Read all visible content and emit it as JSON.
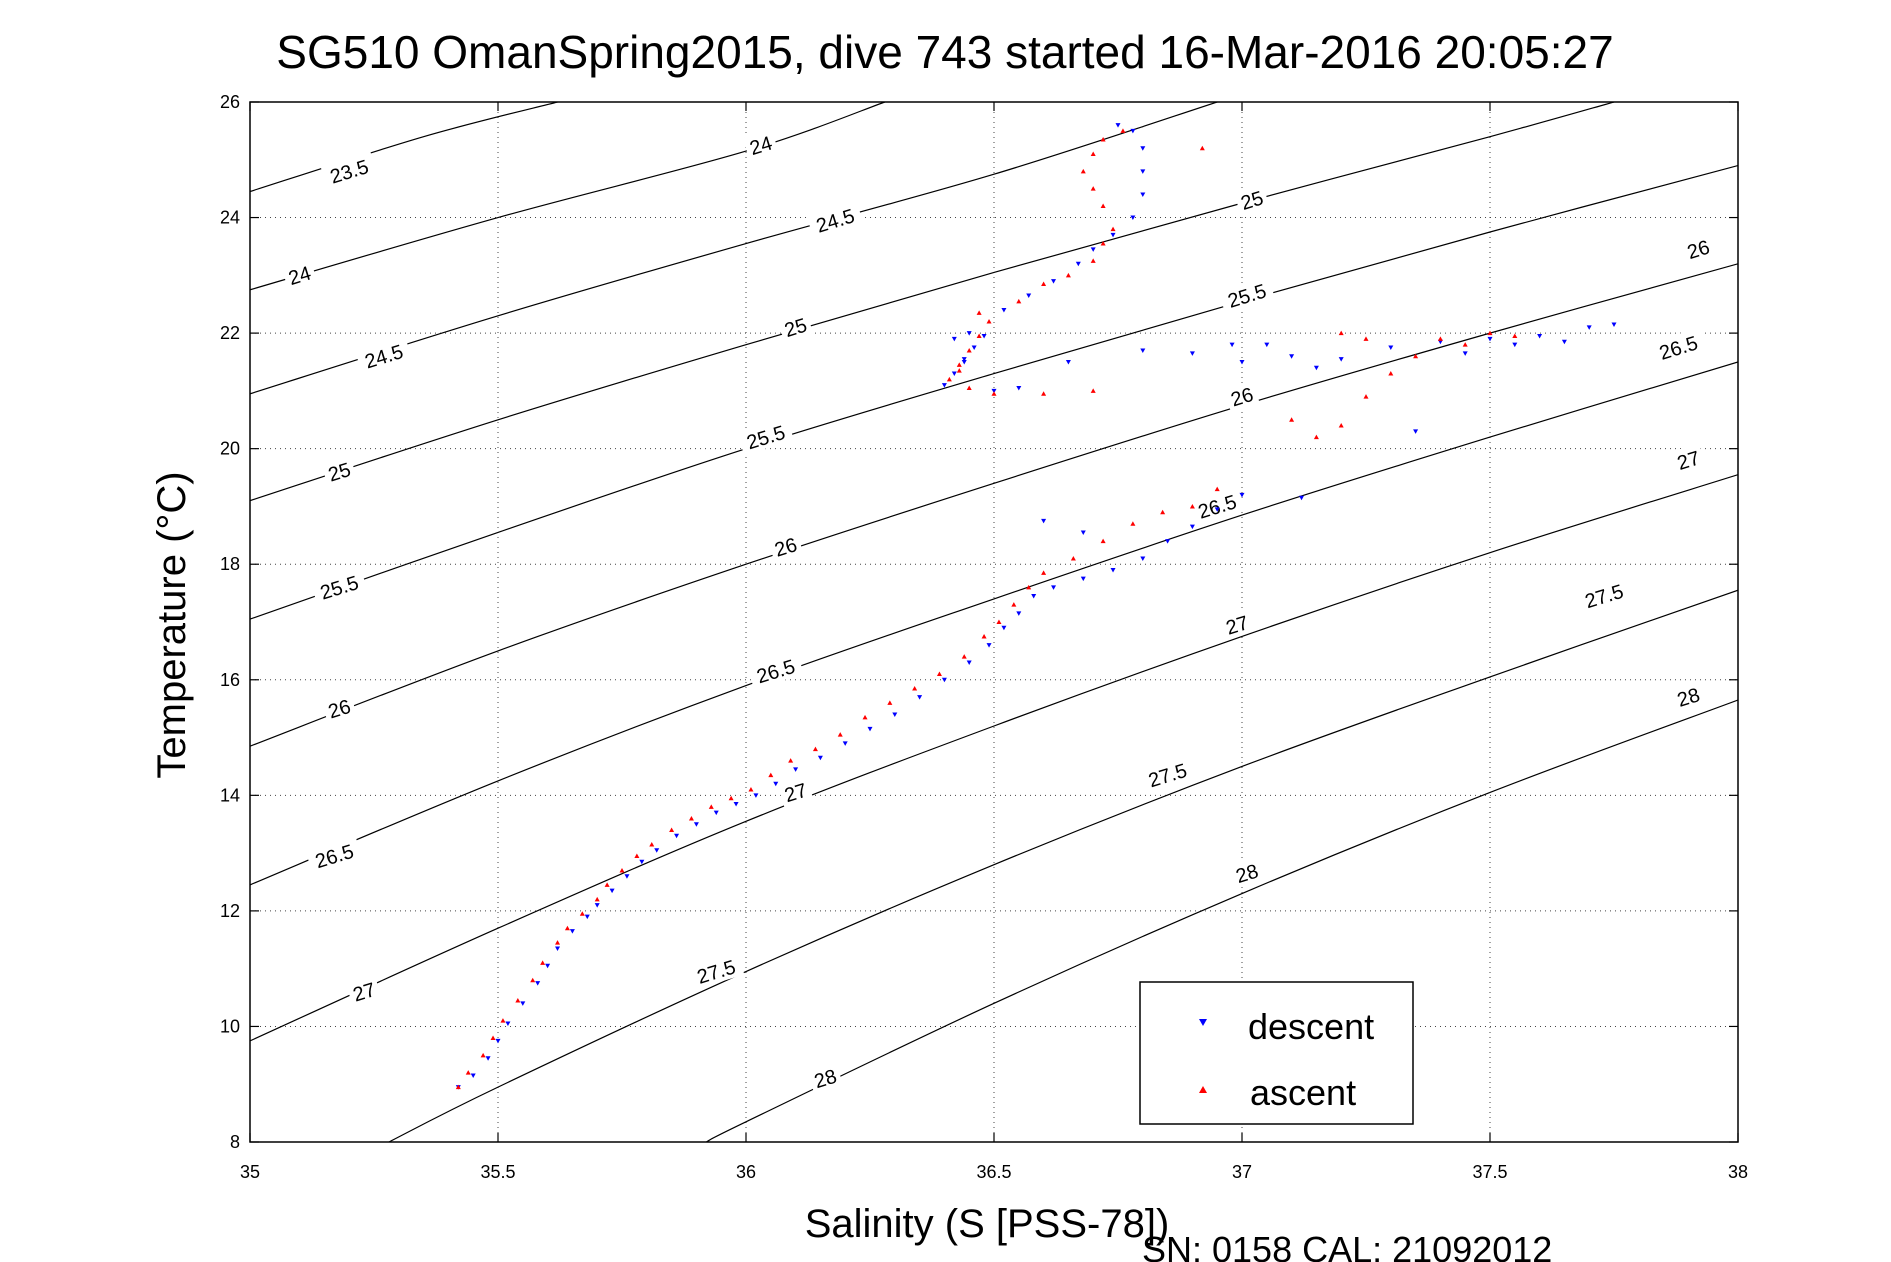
{
  "chart_data": {
    "type": "scatter",
    "title": "SG510 OmanSpring2015, dive 743 started 16-Mar-2016 20:05:27",
    "xlabel": "Salinity (S [PSS-78])",
    "ylabel": "Temperature (°C)",
    "xlim": [
      35,
      38
    ],
    "ylim": [
      8,
      26
    ],
    "xticks": [
      35,
      35.5,
      36,
      36.5,
      37,
      37.5,
      38
    ],
    "xtick_labels": [
      "35",
      "35.5",
      "36",
      "36.5",
      "37",
      "37.5",
      "38"
    ],
    "yticks": [
      8,
      10,
      12,
      14,
      16,
      18,
      20,
      22,
      24,
      26
    ],
    "ytick_labels": [
      "8",
      "10",
      "12",
      "14",
      "16",
      "18",
      "20",
      "22",
      "24",
      "26"
    ],
    "grid": true,
    "legend_position": "bottom-right",
    "contours": {
      "levels": [
        23.5,
        24,
        24.5,
        25,
        25.5,
        26,
        26.5,
        27,
        27.5,
        28
      ],
      "labels": [
        "23.5",
        "24",
        "24.5",
        "25",
        "25.5",
        "26",
        "26.5",
        "27",
        "27.5",
        "28"
      ],
      "lines": [
        {
          "level": 23.5,
          "points": [
            [
              35.0,
              24.45
            ],
            [
              35.35,
              25.4
            ],
            [
              35.62,
              26.0
            ]
          ]
        },
        {
          "level": 24,
          "points": [
            [
              35.0,
              22.75
            ],
            [
              35.5,
              24.0
            ],
            [
              36.0,
              25.15
            ],
            [
              36.28,
              26.0
            ]
          ]
        },
        {
          "level": 24.5,
          "points": [
            [
              35.0,
              20.95
            ],
            [
              35.5,
              22.3
            ],
            [
              36.0,
              23.55
            ],
            [
              36.5,
              24.75
            ],
            [
              36.95,
              26.0
            ]
          ]
        },
        {
          "level": 25,
          "points": [
            [
              35.0,
              19.1
            ],
            [
              35.5,
              20.5
            ],
            [
              36.0,
              21.8
            ],
            [
              36.5,
              23.05
            ],
            [
              37.0,
              24.25
            ],
            [
              37.5,
              25.4
            ],
            [
              37.75,
              26.0
            ]
          ]
        },
        {
          "level": 25.5,
          "points": [
            [
              35.0,
              17.05
            ],
            [
              35.5,
              18.55
            ],
            [
              36.0,
              20.0
            ],
            [
              36.5,
              21.3
            ],
            [
              37.0,
              22.55
            ],
            [
              37.5,
              23.75
            ],
            [
              38.0,
              24.9
            ]
          ]
        },
        {
          "level": 26,
          "points": [
            [
              35.0,
              14.85
            ],
            [
              35.5,
              16.5
            ],
            [
              36.0,
              18.0
            ],
            [
              36.5,
              19.4
            ],
            [
              37.0,
              20.75
            ],
            [
              37.5,
              22.0
            ],
            [
              38.0,
              23.2
            ]
          ]
        },
        {
          "level": 26.5,
          "points": [
            [
              35.0,
              12.45
            ],
            [
              35.5,
              14.25
            ],
            [
              36.0,
              15.9
            ],
            [
              36.5,
              17.4
            ],
            [
              37.0,
              18.85
            ],
            [
              37.5,
              20.2
            ],
            [
              38.0,
              21.5
            ]
          ]
        },
        {
          "level": 27,
          "points": [
            [
              35.0,
              9.75
            ],
            [
              35.5,
              11.7
            ],
            [
              36.0,
              13.55
            ],
            [
              36.5,
              15.2
            ],
            [
              37.0,
              16.75
            ],
            [
              37.5,
              18.2
            ],
            [
              38.0,
              19.55
            ]
          ]
        },
        {
          "level": 27.5,
          "points": [
            [
              35.28,
              8.0
            ],
            [
              35.5,
              8.95
            ],
            [
              36.0,
              10.95
            ],
            [
              36.5,
              12.8
            ],
            [
              37.0,
              14.5
            ],
            [
              37.5,
              16.05
            ],
            [
              38.0,
              17.55
            ]
          ]
        },
        {
          "level": 28,
          "points": [
            [
              35.92,
              8.0
            ],
            [
              36.0,
              8.35
            ],
            [
              36.5,
              10.4
            ],
            [
              37.0,
              12.3
            ],
            [
              37.5,
              14.05
            ],
            [
              38.0,
              15.65
            ]
          ]
        }
      ],
      "label_positions": [
        {
          "label": "23.5",
          "x": 35.2,
          "y": 24.8
        },
        {
          "label": "24",
          "x": 35.1,
          "y": 23.0
        },
        {
          "label": "24",
          "x": 36.03,
          "y": 25.25
        },
        {
          "label": "24.5",
          "x": 35.27,
          "y": 21.6
        },
        {
          "label": "24.5",
          "x": 36.18,
          "y": 23.95
        },
        {
          "label": "25",
          "x": 35.18,
          "y": 19.6
        },
        {
          "label": "25",
          "x": 36.1,
          "y": 22.1
        },
        {
          "label": "25",
          "x": 37.02,
          "y": 24.3
        },
        {
          "label": "25.5",
          "x": 35.18,
          "y": 17.6
        },
        {
          "label": "25.5",
          "x": 36.04,
          "y": 20.2
        },
        {
          "label": "25.5",
          "x": 37.01,
          "y": 22.65
        },
        {
          "label": "26",
          "x": 35.18,
          "y": 15.5
        },
        {
          "label": "26",
          "x": 36.08,
          "y": 18.3
        },
        {
          "label": "26",
          "x": 37.0,
          "y": 20.9
        },
        {
          "label": "26",
          "x": 37.92,
          "y": 23.45
        },
        {
          "label": "26.5",
          "x": 35.17,
          "y": 12.95
        },
        {
          "label": "26.5",
          "x": 36.06,
          "y": 16.15
        },
        {
          "label": "26.5",
          "x": 36.95,
          "y": 19.0
        },
        {
          "label": "26.5",
          "x": 37.88,
          "y": 21.75
        },
        {
          "label": "27",
          "x": 35.23,
          "y": 10.6
        },
        {
          "label": "27",
          "x": 36.1,
          "y": 14.05
        },
        {
          "label": "27",
          "x": 36.99,
          "y": 16.95
        },
        {
          "label": "27",
          "x": 37.9,
          "y": 19.8
        },
        {
          "label": "27.5",
          "x": 35.94,
          "y": 10.95
        },
        {
          "label": "27.5",
          "x": 36.85,
          "y": 14.35
        },
        {
          "label": "27.5",
          "x": 37.73,
          "y": 17.45
        },
        {
          "label": "28",
          "x": 36.16,
          "y": 9.1
        },
        {
          "label": "28",
          "x": 37.01,
          "y": 12.65
        },
        {
          "label": "28",
          "x": 37.9,
          "y": 15.7
        }
      ]
    },
    "series": [
      {
        "name": "descent",
        "color": "#0000ff",
        "marker": "triangle-down",
        "points": [
          [
            35.42,
            8.95
          ],
          [
            35.45,
            9.15
          ],
          [
            35.48,
            9.45
          ],
          [
            35.5,
            9.75
          ],
          [
            35.52,
            10.05
          ],
          [
            35.55,
            10.4
          ],
          [
            35.58,
            10.75
          ],
          [
            35.6,
            11.05
          ],
          [
            35.62,
            11.35
          ],
          [
            35.65,
            11.65
          ],
          [
            35.68,
            11.9
          ],
          [
            35.7,
            12.1
          ],
          [
            35.73,
            12.35
          ],
          [
            35.76,
            12.6
          ],
          [
            35.79,
            12.85
          ],
          [
            35.82,
            13.05
          ],
          [
            35.86,
            13.3
          ],
          [
            35.9,
            13.5
          ],
          [
            35.94,
            13.7
          ],
          [
            35.98,
            13.85
          ],
          [
            36.02,
            14.0
          ],
          [
            36.06,
            14.2
          ],
          [
            36.1,
            14.45
          ],
          [
            36.15,
            14.65
          ],
          [
            36.2,
            14.9
          ],
          [
            36.25,
            15.15
          ],
          [
            36.3,
            15.4
          ],
          [
            36.35,
            15.7
          ],
          [
            36.4,
            16.0
          ],
          [
            36.45,
            16.3
          ],
          [
            36.49,
            16.6
          ],
          [
            36.52,
            16.9
          ],
          [
            36.55,
            17.15
          ],
          [
            36.58,
            17.45
          ],
          [
            36.62,
            17.6
          ],
          [
            36.68,
            17.75
          ],
          [
            36.74,
            17.9
          ],
          [
            36.8,
            18.1
          ],
          [
            36.85,
            18.4
          ],
          [
            36.9,
            18.65
          ],
          [
            36.95,
            18.95
          ],
          [
            37.0,
            19.2
          ],
          [
            37.12,
            19.15
          ],
          [
            36.6,
            18.75
          ],
          [
            36.68,
            18.55
          ],
          [
            36.4,
            21.1
          ],
          [
            36.42,
            21.3
          ],
          [
            36.44,
            21.55
          ],
          [
            36.46,
            21.75
          ],
          [
            36.48,
            21.95
          ],
          [
            36.45,
            22.0
          ],
          [
            36.42,
            21.9
          ],
          [
            36.44,
            21.5
          ],
          [
            36.5,
            21.0
          ],
          [
            36.55,
            21.05
          ],
          [
            36.65,
            21.5
          ],
          [
            36.8,
            21.7
          ],
          [
            36.9,
            21.65
          ],
          [
            36.98,
            21.8
          ],
          [
            37.0,
            21.5
          ],
          [
            37.05,
            21.8
          ],
          [
            37.1,
            21.6
          ],
          [
            37.15,
            21.4
          ],
          [
            37.2,
            21.55
          ],
          [
            37.3,
            21.75
          ],
          [
            37.4,
            21.85
          ],
          [
            37.45,
            21.65
          ],
          [
            37.5,
            21.9
          ],
          [
            37.55,
            21.8
          ],
          [
            37.6,
            21.95
          ],
          [
            37.65,
            21.85
          ],
          [
            37.7,
            22.1
          ],
          [
            37.75,
            22.15
          ],
          [
            37.35,
            20.3
          ],
          [
            36.52,
            22.4
          ],
          [
            36.57,
            22.65
          ],
          [
            36.62,
            22.9
          ],
          [
            36.67,
            23.2
          ],
          [
            36.7,
            23.45
          ],
          [
            36.74,
            23.7
          ],
          [
            36.78,
            24.0
          ],
          [
            36.8,
            24.4
          ],
          [
            36.8,
            24.8
          ],
          [
            36.8,
            25.2
          ],
          [
            36.78,
            25.5
          ],
          [
            36.75,
            25.6
          ]
        ]
      },
      {
        "name": "ascent",
        "color": "#ff0000",
        "marker": "triangle-up",
        "points": [
          [
            35.42,
            8.95
          ],
          [
            35.44,
            9.2
          ],
          [
            35.47,
            9.5
          ],
          [
            35.49,
            9.8
          ],
          [
            35.51,
            10.1
          ],
          [
            35.54,
            10.45
          ],
          [
            35.57,
            10.8
          ],
          [
            35.59,
            11.1
          ],
          [
            35.62,
            11.45
          ],
          [
            35.64,
            11.7
          ],
          [
            35.67,
            11.95
          ],
          [
            35.7,
            12.2
          ],
          [
            35.72,
            12.45
          ],
          [
            35.75,
            12.7
          ],
          [
            35.78,
            12.95
          ],
          [
            35.81,
            13.15
          ],
          [
            35.85,
            13.4
          ],
          [
            35.89,
            13.6
          ],
          [
            35.93,
            13.8
          ],
          [
            35.97,
            13.95
          ],
          [
            36.01,
            14.1
          ],
          [
            36.05,
            14.35
          ],
          [
            36.09,
            14.6
          ],
          [
            36.14,
            14.8
          ],
          [
            36.19,
            15.05
          ],
          [
            36.24,
            15.35
          ],
          [
            36.29,
            15.6
          ],
          [
            36.34,
            15.85
          ],
          [
            36.39,
            16.1
          ],
          [
            36.44,
            16.4
          ],
          [
            36.48,
            16.75
          ],
          [
            36.51,
            17.0
          ],
          [
            36.54,
            17.3
          ],
          [
            36.57,
            17.6
          ],
          [
            36.6,
            17.85
          ],
          [
            36.66,
            18.1
          ],
          [
            36.72,
            18.4
          ],
          [
            36.78,
            18.7
          ],
          [
            36.84,
            18.9
          ],
          [
            36.9,
            19.0
          ],
          [
            36.95,
            19.3
          ],
          [
            36.41,
            21.2
          ],
          [
            36.43,
            21.45
          ],
          [
            36.45,
            21.7
          ],
          [
            36.47,
            21.95
          ],
          [
            36.49,
            22.2
          ],
          [
            36.47,
            22.35
          ],
          [
            36.43,
            21.35
          ],
          [
            36.45,
            21.05
          ],
          [
            36.5,
            20.95
          ],
          [
            36.6,
            20.95
          ],
          [
            36.7,
            21.0
          ],
          [
            37.1,
            20.5
          ],
          [
            37.15,
            20.2
          ],
          [
            37.2,
            20.4
          ],
          [
            37.25,
            20.9
          ],
          [
            37.3,
            21.3
          ],
          [
            37.35,
            21.6
          ],
          [
            37.4,
            21.9
          ],
          [
            37.45,
            21.8
          ],
          [
            37.5,
            22.0
          ],
          [
            37.55,
            21.95
          ],
          [
            37.2,
            22.0
          ],
          [
            37.25,
            21.9
          ],
          [
            36.55,
            22.55
          ],
          [
            36.6,
            22.85
          ],
          [
            36.65,
            23.0
          ],
          [
            36.7,
            23.25
          ],
          [
            36.72,
            23.55
          ],
          [
            36.74,
            23.8
          ],
          [
            36.72,
            24.2
          ],
          [
            36.7,
            24.5
          ],
          [
            36.68,
            24.8
          ],
          [
            36.7,
            25.1
          ],
          [
            36.72,
            25.35
          ],
          [
            36.76,
            25.5
          ],
          [
            36.92,
            25.2
          ]
        ]
      }
    ]
  },
  "legend": {
    "descent_label": "descent",
    "ascent_label": "ascent"
  },
  "footer": {
    "serial_text": "SN: 0158  CAL: 21092012"
  }
}
